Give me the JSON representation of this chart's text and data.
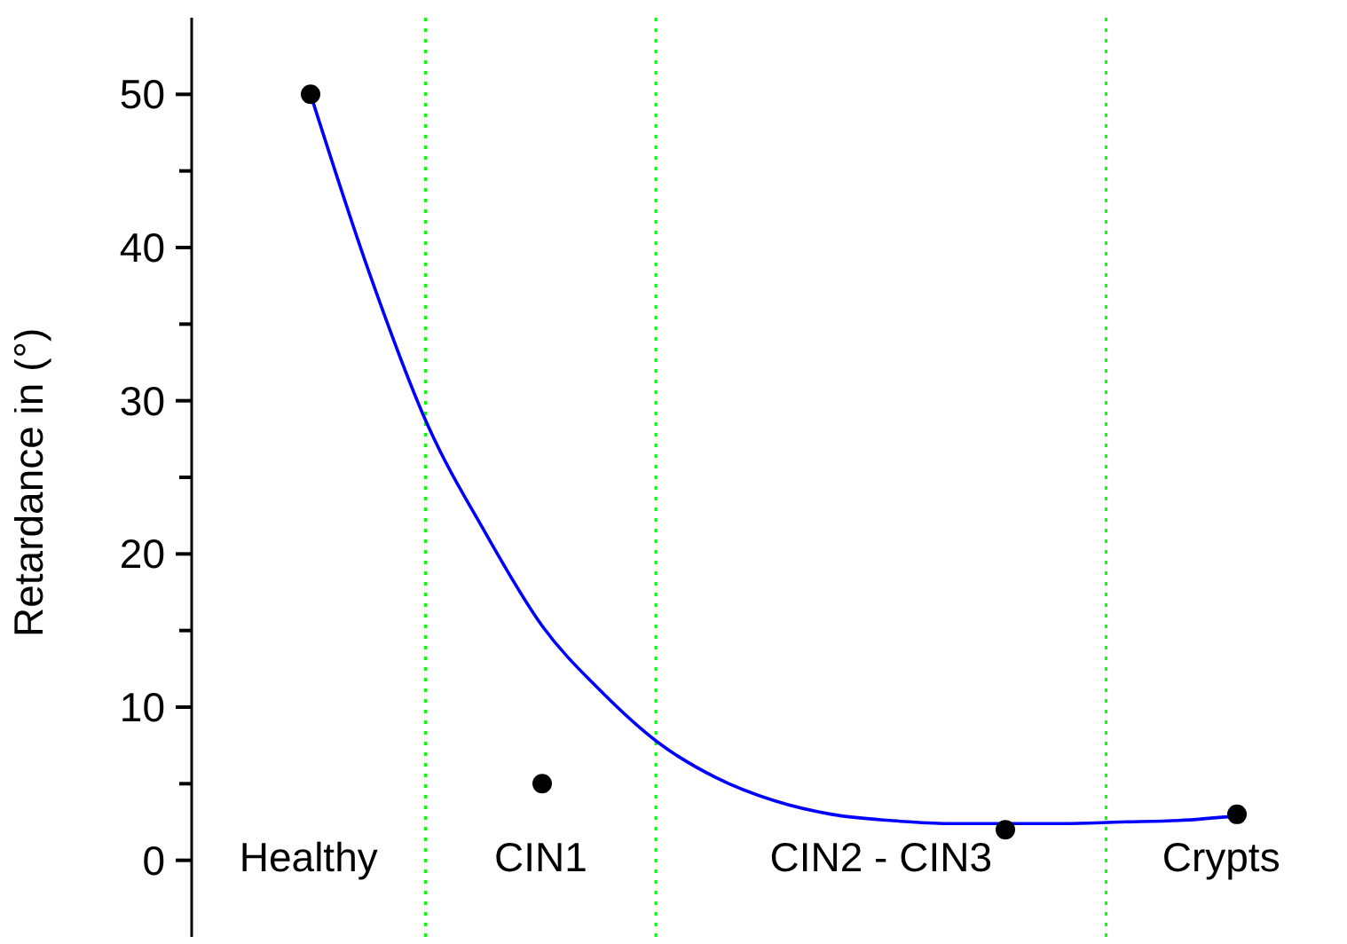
{
  "chart_data": {
    "type": "line",
    "ylabel": "Retardance in (°)",
    "ylim": [
      -5,
      55
    ],
    "yticks": [
      0,
      10,
      20,
      30,
      40,
      50
    ],
    "tick_labels": "y",
    "categories": [
      null,
      null,
      null,
      null,
      null,
      null,
      null,
      null,
      null,
      null,
      null,
      null,
      null,
      null,
      null,
      null,
      null
    ],
    "series": [
      {
        "color": "#0000ff",
        "marker": "none",
        "line_style": "solid",
        "values": [
          50,
          38.5,
          28.6,
          21.5,
          15.3,
          11.1,
          7.7,
          5.4,
          3.9,
          3,
          2.6,
          2.4,
          2.4,
          2.4,
          2.5,
          2.6,
          2.9
        ]
      },
      {
        "type": "scatter",
        "color": "#000000",
        "marker": "circle",
        "values": [
          50,
          null,
          null,
          null,
          5,
          null,
          null,
          null,
          null,
          null,
          null,
          null,
          2,
          null,
          null,
          null,
          3
        ]
      }
    ],
    "annotations": [
      "Healthy",
      "CIN1",
      "CIN2 - CIN3",
      "Crypts"
    ]
  }
}
